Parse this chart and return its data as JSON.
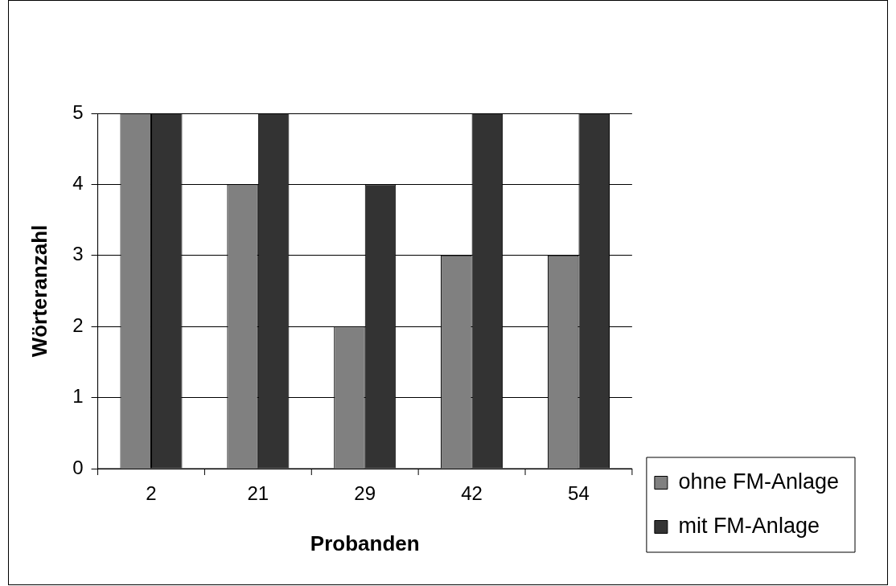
{
  "chart_data": {
    "type": "bar",
    "xlabel": "Probanden",
    "ylabel": "Wörteranzahl",
    "categories": [
      "2",
      "21",
      "29",
      "42",
      "54"
    ],
    "series": [
      {
        "name": "ohne FM-Anlage",
        "color": "#808080",
        "values": [
          5,
          4,
          2,
          3,
          3
        ]
      },
      {
        "name": "mit FM-Anlage",
        "color": "#333333",
        "values": [
          5,
          5,
          4,
          5,
          5
        ]
      }
    ],
    "ylim": [
      0,
      5
    ],
    "yticks": [
      0,
      1,
      2,
      3,
      4,
      5
    ],
    "grid": "y",
    "legend": "bottom right"
  }
}
